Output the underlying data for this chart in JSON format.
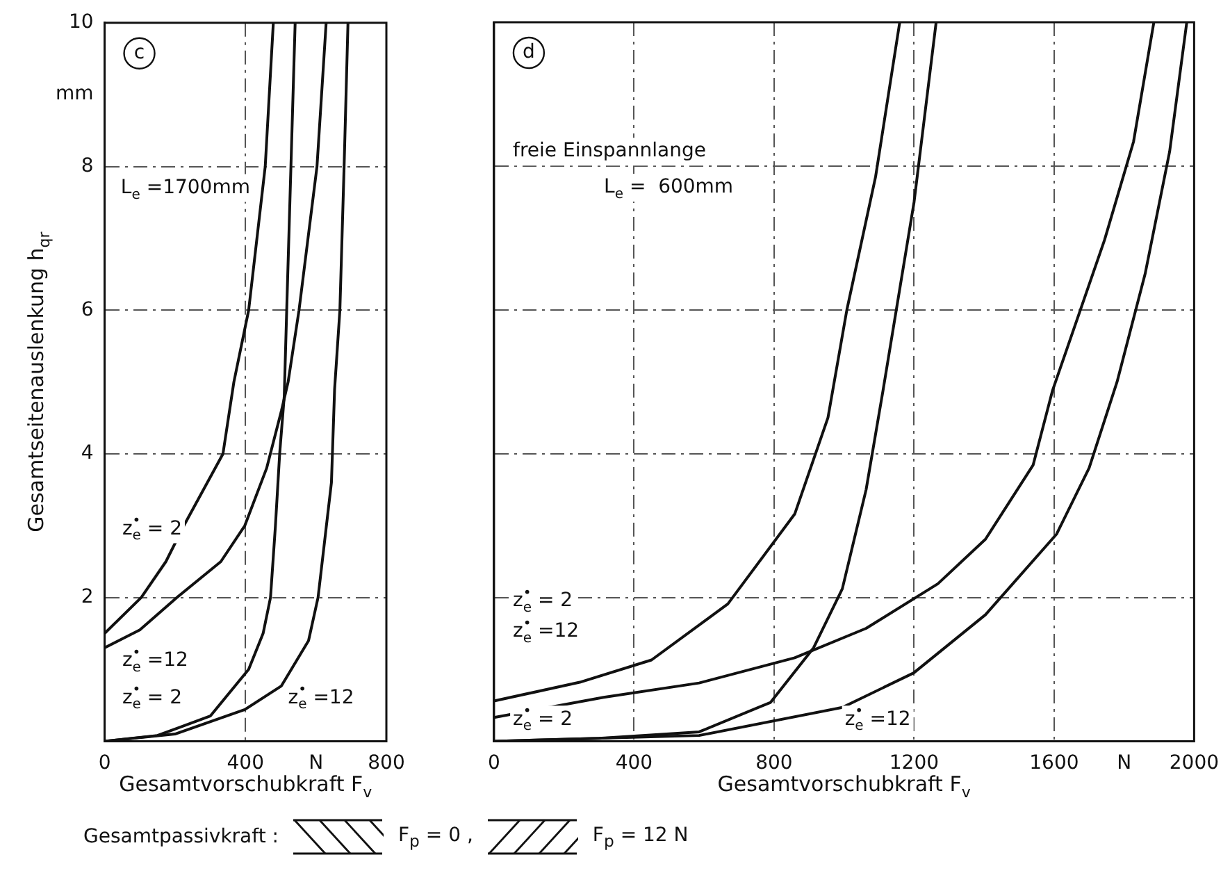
{
  "chart_data": [
    {
      "type": "line",
      "title": "c",
      "ylabel": "Gesamtseitenauslenkung h$_{qr}$",
      "xlabel": "Gesamtvorschubkraft F$_{v}$",
      "xlim": [
        0,
        800
      ],
      "xticks": [
        0,
        400,
        {
          "value": 600,
          "label": "N"
        },
        800
      ],
      "ylim": [
        0,
        10
      ],
      "yticks": [
        2,
        4,
        6,
        8,
        {
          "value": 9,
          "label": "mm"
        },
        10
      ],
      "grid": true,
      "marker": "none",
      "legend": false,
      "series": [
        {
          "color": "#111111",
          "x": [
            0,
            104,
            174,
            225,
            336,
            367,
            409,
            456,
            479
          ],
          "values": [
            1.5,
            2,
            2.5,
            3,
            4,
            5,
            6,
            8,
            10
          ]
        },
        {
          "color": "#111111",
          "x": [
            0,
            100,
            205,
            330,
            398,
            460,
            502,
            521,
            552,
            603,
            629
          ],
          "values": [
            1.3,
            1.55,
            2,
            2.5,
            3,
            3.8,
            4.6,
            5,
            6,
            8,
            10
          ]
        },
        {
          "color": "#111111",
          "x": [
            0,
            150,
            300,
            409,
            450,
            471,
            485,
            497,
            510,
            517,
            529,
            541
          ],
          "values": [
            0,
            0.08,
            0.35,
            1,
            1.5,
            2,
            3,
            4,
            4.8,
            6,
            8,
            10
          ]
        },
        {
          "color": "#111111",
          "x": [
            0,
            200,
            398,
            502,
            579,
            606,
            644,
            653,
            668,
            680,
            691
          ],
          "values": [
            0,
            0.1,
            0.44,
            0.77,
            1.4,
            2,
            3.6,
            4.9,
            6,
            8,
            10
          ]
        }
      ],
      "annotations": [
        "L$_{e}$ =1700mm",
        "z$_{e}$$^{•}$ = 2",
        "z$_{e}$$^{•}$ =12",
        "z$_{e}$$^{•}$ = 2",
        "z$_{e}$$^{•}$ =12"
      ]
    },
    {
      "type": "line",
      "title": "d",
      "xlabel": "Gesamtvorschubkraft F$_{v}$",
      "xlim": [
        0,
        2000
      ],
      "xticks": [
        0,
        400,
        800,
        1200,
        1600,
        {
          "value": 1800,
          "label": "N"
        },
        2000
      ],
      "ylim": [
        0,
        10
      ],
      "yticks": [
        2,
        4,
        6,
        8,
        10
      ],
      "tick_labels": "x",
      "grid": true,
      "marker": "none",
      "legend": false,
      "series": [
        {
          "color": "#111111",
          "x": [
            0,
            245,
            450,
            668,
            859,
            954,
            1008,
            1090,
            1159
          ],
          "values": [
            0.56,
            0.82,
            1.13,
            1.91,
            3.16,
            4.5,
            6,
            7.85,
            10
          ]
        },
        {
          "color": "#111111",
          "x": [
            0,
            313,
            586,
            859,
            1063,
            1268,
            1404,
            1540,
            1595,
            1744,
            1827,
            1885
          ],
          "values": [
            0.33,
            0.61,
            0.81,
            1.16,
            1.57,
            2.19,
            2.81,
            3.84,
            4.87,
            6.97,
            8.34,
            10
          ]
        },
        {
          "color": "#111111",
          "x": [
            0,
            300,
            586,
            790,
            913,
            995,
            1063,
            1111,
            1200,
            1263
          ],
          "values": [
            0,
            0.04,
            0.13,
            0.54,
            1.3,
            2.12,
            3.5,
            4.87,
            7.5,
            10
          ]
        },
        {
          "color": "#111111",
          "x": [
            0,
            586,
            995,
            1199,
            1404,
            1607,
            1700,
            1780,
            1860,
            1930,
            1979
          ],
          "values": [
            0,
            0.08,
            0.47,
            0.95,
            1.76,
            2.88,
            3.8,
            5,
            6.5,
            8.2,
            10
          ]
        }
      ],
      "annotations": [
        "freie Einspannlange",
        "L$_{e}$ =  600mm",
        "z$_{e}$$^{•}$ = 2",
        "z$_{e}$$^{•}$ =12",
        "z$_{e}$$^{•}$ = 2",
        "z$_{e}$$^{•}$ =12"
      ]
    },
    {
      "type": "other",
      "title": "Gesamtpassivkraft :",
      "annotations": [
        "F$_{p}$ = 0 ,",
        "F$_{p}$ = 12 N"
      ]
    }
  ]
}
